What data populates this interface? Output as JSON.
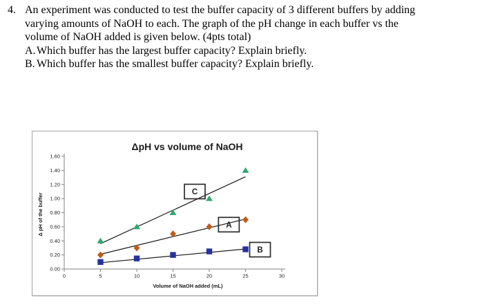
{
  "question": {
    "number": "4.",
    "lines": [
      "An experiment was conducted to test the buffer capacity of 3 different buffers by adding",
      "varying amounts of NaOH to each. The graph of the pH change in each buffer vs the",
      "volume of NaOH added is given below. (4pts total)"
    ],
    "subquestions": [
      {
        "label": "A.",
        "text": "Which buffer has the largest buffer capacity? Explain briefly."
      },
      {
        "label": "B.",
        "text": "Which buffer has the smallest buffer capacity? Explain briefly."
      }
    ]
  },
  "chart_data": {
    "type": "scatter",
    "title": "ΔpH vs volume of NaOH",
    "xlabel": "Volume of  NaOH added (mL)",
    "ylabel": "Δ pH of the buffer",
    "xlim": [
      0,
      30
    ],
    "ylim": [
      0,
      1.6
    ],
    "xticks": [
      0,
      5,
      10,
      15,
      20,
      25,
      30
    ],
    "yticks": [
      "0.00",
      "0.20",
      "0.40",
      "0.60",
      "0.80",
      "1.00",
      "1.20",
      "1.40",
      "1.60"
    ],
    "x": [
      5,
      10,
      15,
      20,
      25
    ],
    "series": [
      {
        "name": "C",
        "marker": "triangle",
        "color": "#2fa86e",
        "values": [
          0.4,
          0.6,
          0.8,
          1.0,
          1.4
        ],
        "trend": [
          [
            5,
            0.36
          ],
          [
            25,
            1.31
          ]
        ]
      },
      {
        "name": "A",
        "marker": "diamond",
        "color": "#bf5c16",
        "values": [
          0.2,
          0.3,
          0.5,
          0.6,
          0.7
        ],
        "trend": [
          [
            5,
            0.21
          ],
          [
            25,
            0.71
          ]
        ]
      },
      {
        "name": "B",
        "marker": "square",
        "color": "#2432a0",
        "values": [
          0.1,
          0.15,
          0.2,
          0.25,
          0.28
        ],
        "trend": [
          [
            5,
            0.09
          ],
          [
            25,
            0.285
          ]
        ]
      }
    ],
    "annotations": [
      {
        "label": "C",
        "x": 18.0,
        "y": 1.1
      },
      {
        "label": "A",
        "x": 22.7,
        "y": 0.63
      },
      {
        "label": "B",
        "x": 27.0,
        "y": 0.275
      }
    ],
    "grid": false,
    "legend_position": "none",
    "trendline_color": "#1a1a1a",
    "axis_color": "#808080"
  }
}
